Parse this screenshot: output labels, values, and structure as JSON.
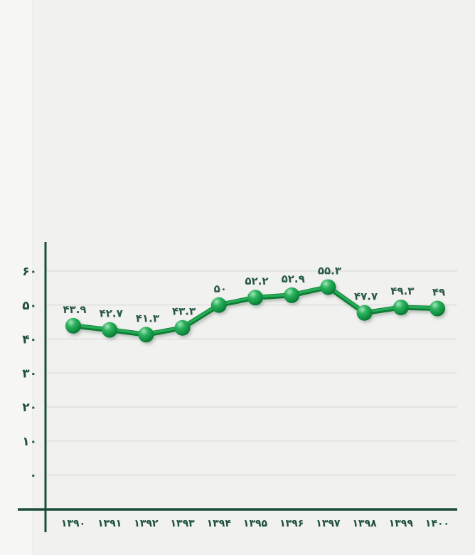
{
  "chart_data": {
    "type": "line",
    "title": "",
    "xlabel": "",
    "ylabel": "",
    "legend": "none",
    "grid": true,
    "rtl_locale": "fa",
    "categories": [
      "۱۳۹۰",
      "۱۳۹۱",
      "۱۳۹۲",
      "۱۳۹۳",
      "۱۳۹۴",
      "۱۳۹۵",
      "۱۳۹۶",
      "۱۳۹۷",
      "۱۳۹۸",
      "۱۳۹۹",
      "۱۴۰۰"
    ],
    "x": [
      1390,
      1391,
      1392,
      1393,
      1394,
      1395,
      1396,
      1397,
      1398,
      1399,
      1400
    ],
    "values": [
      43.9,
      42.7,
      41.3,
      43.3,
      50,
      52.2,
      52.9,
      55.3,
      47.7,
      49.3,
      49
    ],
    "value_labels": [
      "۴۳.۹",
      "۴۲.۷",
      "۴۱.۳",
      "۴۳.۳",
      "۵۰",
      "۵۲.۲",
      "۵۲.۹",
      "۵۵.۳",
      "۴۷.۷",
      "۴۹.۳",
      "۴۹"
    ],
    "y_ticks": [
      0,
      10,
      20,
      30,
      40,
      50,
      60
    ],
    "y_tick_labels": [
      "۰",
      "۱۰",
      "۲۰",
      "۳۰",
      "۴۰",
      "۵۰",
      "۶۰"
    ],
    "ylim": [
      0,
      68
    ],
    "colors": {
      "background": "#f1f1ef",
      "page_strip": "#f6f6f4",
      "axis": "#1c4d3a",
      "tick_text": "#1e503d",
      "value_text": "#2b5947",
      "grid": "#d8ddd8",
      "line_dark": "#0c7d35",
      "line_bright": "#2aaf58",
      "ball_light": "#a3e6bc",
      "ball_mid": "#2eb25e",
      "ball_base": "#129344",
      "ball_dark": "#076b2f"
    }
  }
}
